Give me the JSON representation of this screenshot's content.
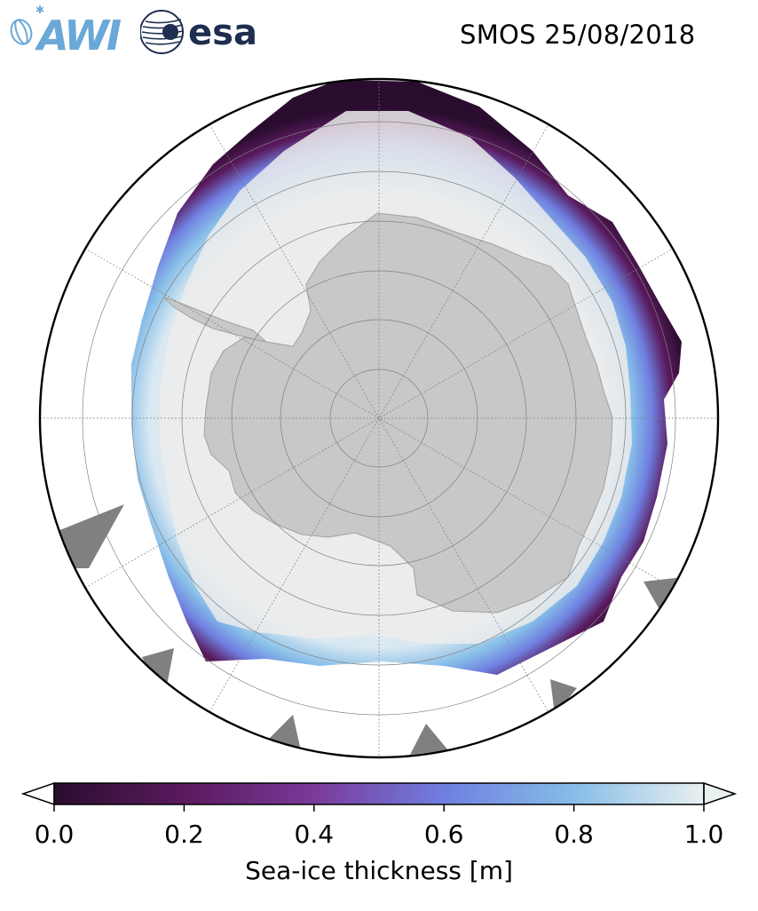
{
  "header": {
    "title": "SMOS 25/08/2018",
    "logo_awi_text": "AWI",
    "logo_esa_text": "esa"
  },
  "colorbar": {
    "label": "Sea-ice thickness [m]",
    "min": 0.0,
    "max": 1.0,
    "ticks": [
      "0.0",
      "0.2",
      "0.4",
      "0.6",
      "0.8",
      "1.0"
    ],
    "tick_values": [
      0.0,
      0.2,
      0.4,
      0.6,
      0.8,
      1.0
    ],
    "colormap": [
      "#2a0d2e",
      "#5a1a5e",
      "#7a3a9a",
      "#6f7fe0",
      "#86bde8",
      "#e8f0f0"
    ],
    "extend": "both"
  },
  "map": {
    "projection": "south-polar-stereographic",
    "land_color": "#c8c8c8",
    "thick_ice_color": "#ececec",
    "ocean_color": "#ffffff",
    "masked_color": "#808080",
    "graticule": true
  }
}
